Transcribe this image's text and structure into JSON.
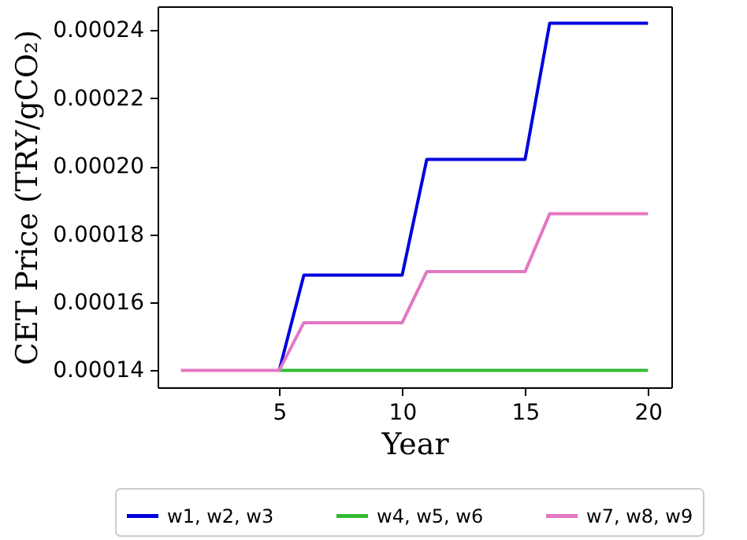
{
  "chart_data": {
    "type": "line",
    "xlabel": "Year",
    "ylabel": "CET Price (TRY/gCO₂)",
    "x": [
      1,
      2,
      3,
      4,
      5,
      6,
      7,
      8,
      9,
      10,
      11,
      12,
      13,
      14,
      15,
      16,
      17,
      18,
      19,
      20
    ],
    "series": [
      {
        "name": "w1, w2, w3",
        "color": "#0000dd",
        "values": [
          null,
          null,
          null,
          null,
          0.00014,
          0.000168,
          0.000168,
          0.000168,
          0.000168,
          0.000168,
          0.000202,
          0.000202,
          0.000202,
          0.000202,
          0.000202,
          0.000242,
          0.000242,
          0.000242,
          0.000242,
          0.000242
        ]
      },
      {
        "name": "w4, w5, w6",
        "color": "#33bb33",
        "values": [
          null,
          null,
          null,
          null,
          0.00014,
          0.00014,
          0.00014,
          0.00014,
          0.00014,
          0.00014,
          0.00014,
          0.00014,
          0.00014,
          0.00014,
          0.00014,
          0.00014,
          0.00014,
          0.00014,
          0.00014,
          0.00014
        ]
      },
      {
        "name": "w7, w8, w9",
        "color": "#e377c2",
        "values": [
          0.00014,
          0.00014,
          0.00014,
          0.00014,
          0.00014,
          0.000154,
          0.000154,
          0.000154,
          0.000154,
          0.000154,
          0.000169,
          0.000169,
          0.000169,
          0.000169,
          0.000169,
          0.000186,
          0.000186,
          0.000186,
          0.000186,
          0.000186
        ]
      }
    ],
    "xlim": [
      0.05,
      20.95
    ],
    "xticks": [
      5,
      10,
      15,
      20
    ],
    "ylim": [
      0.000135,
      0.000247
    ],
    "yticks": [
      {
        "value": 0.00014,
        "label": "0.00014"
      },
      {
        "value": 0.00016,
        "label": "0.00016"
      },
      {
        "value": 0.00018,
        "label": "0.00018"
      },
      {
        "value": 0.0002,
        "label": "0.00020"
      },
      {
        "value": 0.00022,
        "label": "0.00022"
      },
      {
        "value": 0.00024,
        "label": "0.00024"
      }
    ],
    "grid": false,
    "legend": "bottom",
    "marker": "none",
    "line_style": "solid"
  }
}
